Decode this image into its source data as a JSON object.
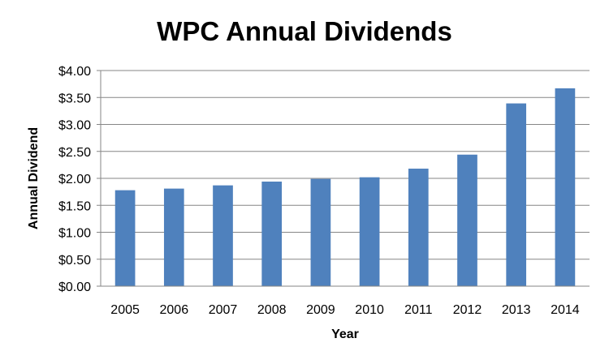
{
  "chart_data": {
    "type": "bar",
    "title": "WPC Annual Dividends",
    "xlabel": "Year",
    "ylabel": "Annual Dividend",
    "categories": [
      "2005",
      "2006",
      "2007",
      "2008",
      "2009",
      "2010",
      "2011",
      "2012",
      "2013",
      "2014"
    ],
    "values": [
      1.78,
      1.81,
      1.87,
      1.94,
      1.99,
      2.02,
      2.18,
      2.44,
      3.39,
      3.67
    ],
    "ylim": [
      0,
      4
    ],
    "yticks": [
      0,
      0.5,
      1.0,
      1.5,
      2.0,
      2.5,
      3.0,
      3.5,
      4.0
    ],
    "ytick_labels": [
      "$0.00",
      "$0.50",
      "$1.00",
      "$1.50",
      "$2.00",
      "$2.50",
      "$3.00",
      "$3.50",
      "$4.00"
    ],
    "grid": true,
    "legend": "none",
    "colors": {
      "bar": "#4F81BD",
      "grid": "#868686",
      "axis": "#868686"
    }
  }
}
